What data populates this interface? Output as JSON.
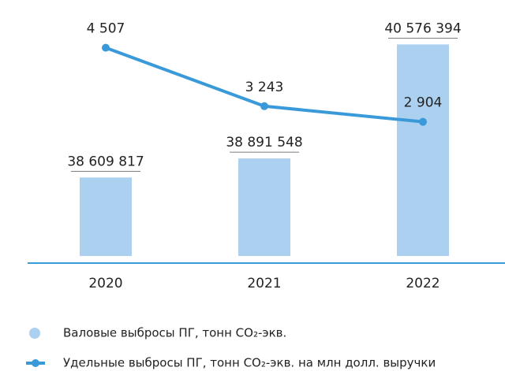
{
  "chart_data": {
    "type": "bar_line",
    "categories": [
      "2020",
      "2021",
      "2022"
    ],
    "series": [
      {
        "name": "Валовые выбросы ПГ, тонн CO₂-экв.",
        "color": "#abd0f0",
        "type": "bar",
        "values": [
          38609817,
          38891548,
          40576394
        ],
        "value_labels": [
          "38 609 817",
          "38 891 548",
          "40 576 394"
        ]
      },
      {
        "name": "Удельные выбросы ПГ, тонн CO₂-экв. на млн долл. выручки",
        "color": "#3a9ad9",
        "type": "line",
        "axis": "y2",
        "values": [
          4507,
          3243,
          2904
        ],
        "value_labels": [
          "4 507",
          "3 243",
          "2 904"
        ]
      }
    ],
    "ylim": [
      37450000,
      41000000
    ],
    "y2lim": [
      0,
      5200
    ],
    "axis_color": "#3a9ad9"
  }
}
